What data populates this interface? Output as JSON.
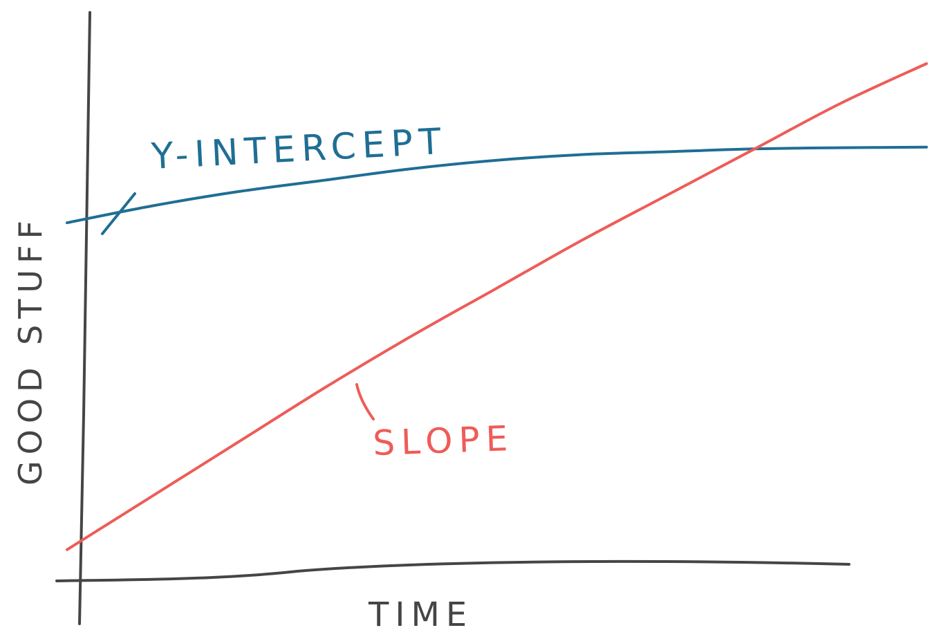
{
  "chart_data": {
    "type": "line",
    "title": "",
    "xlabel": "TIME",
    "ylabel": "GOOD STUFF",
    "x": [
      0,
      1,
      2,
      3,
      4,
      5,
      6,
      7,
      8,
      9,
      10
    ],
    "xlim": [
      0,
      10
    ],
    "ylim": [
      0,
      10
    ],
    "grid": false,
    "legend": "none",
    "series": [
      {
        "values": [
          6.3,
          6.6,
          6.85,
          7.05,
          7.25,
          7.4,
          7.5,
          7.55,
          7.6,
          7.62,
          7.63
        ],
        "color": "#1f6e94"
      },
      {
        "values": [
          0.55,
          1.5,
          2.45,
          3.4,
          4.3,
          5.15,
          6.0,
          6.8,
          7.6,
          8.4,
          9.1
        ],
        "color": "#ee5c57"
      }
    ],
    "annotations": [
      {
        "text": "Y-INTERCEPT",
        "color": "#1f6e94",
        "points_to": "y-intercept"
      },
      {
        "text": "SLOPE",
        "color": "#ee5c57",
        "points_to": "slope"
      }
    ],
    "axis_color": "#454545"
  }
}
